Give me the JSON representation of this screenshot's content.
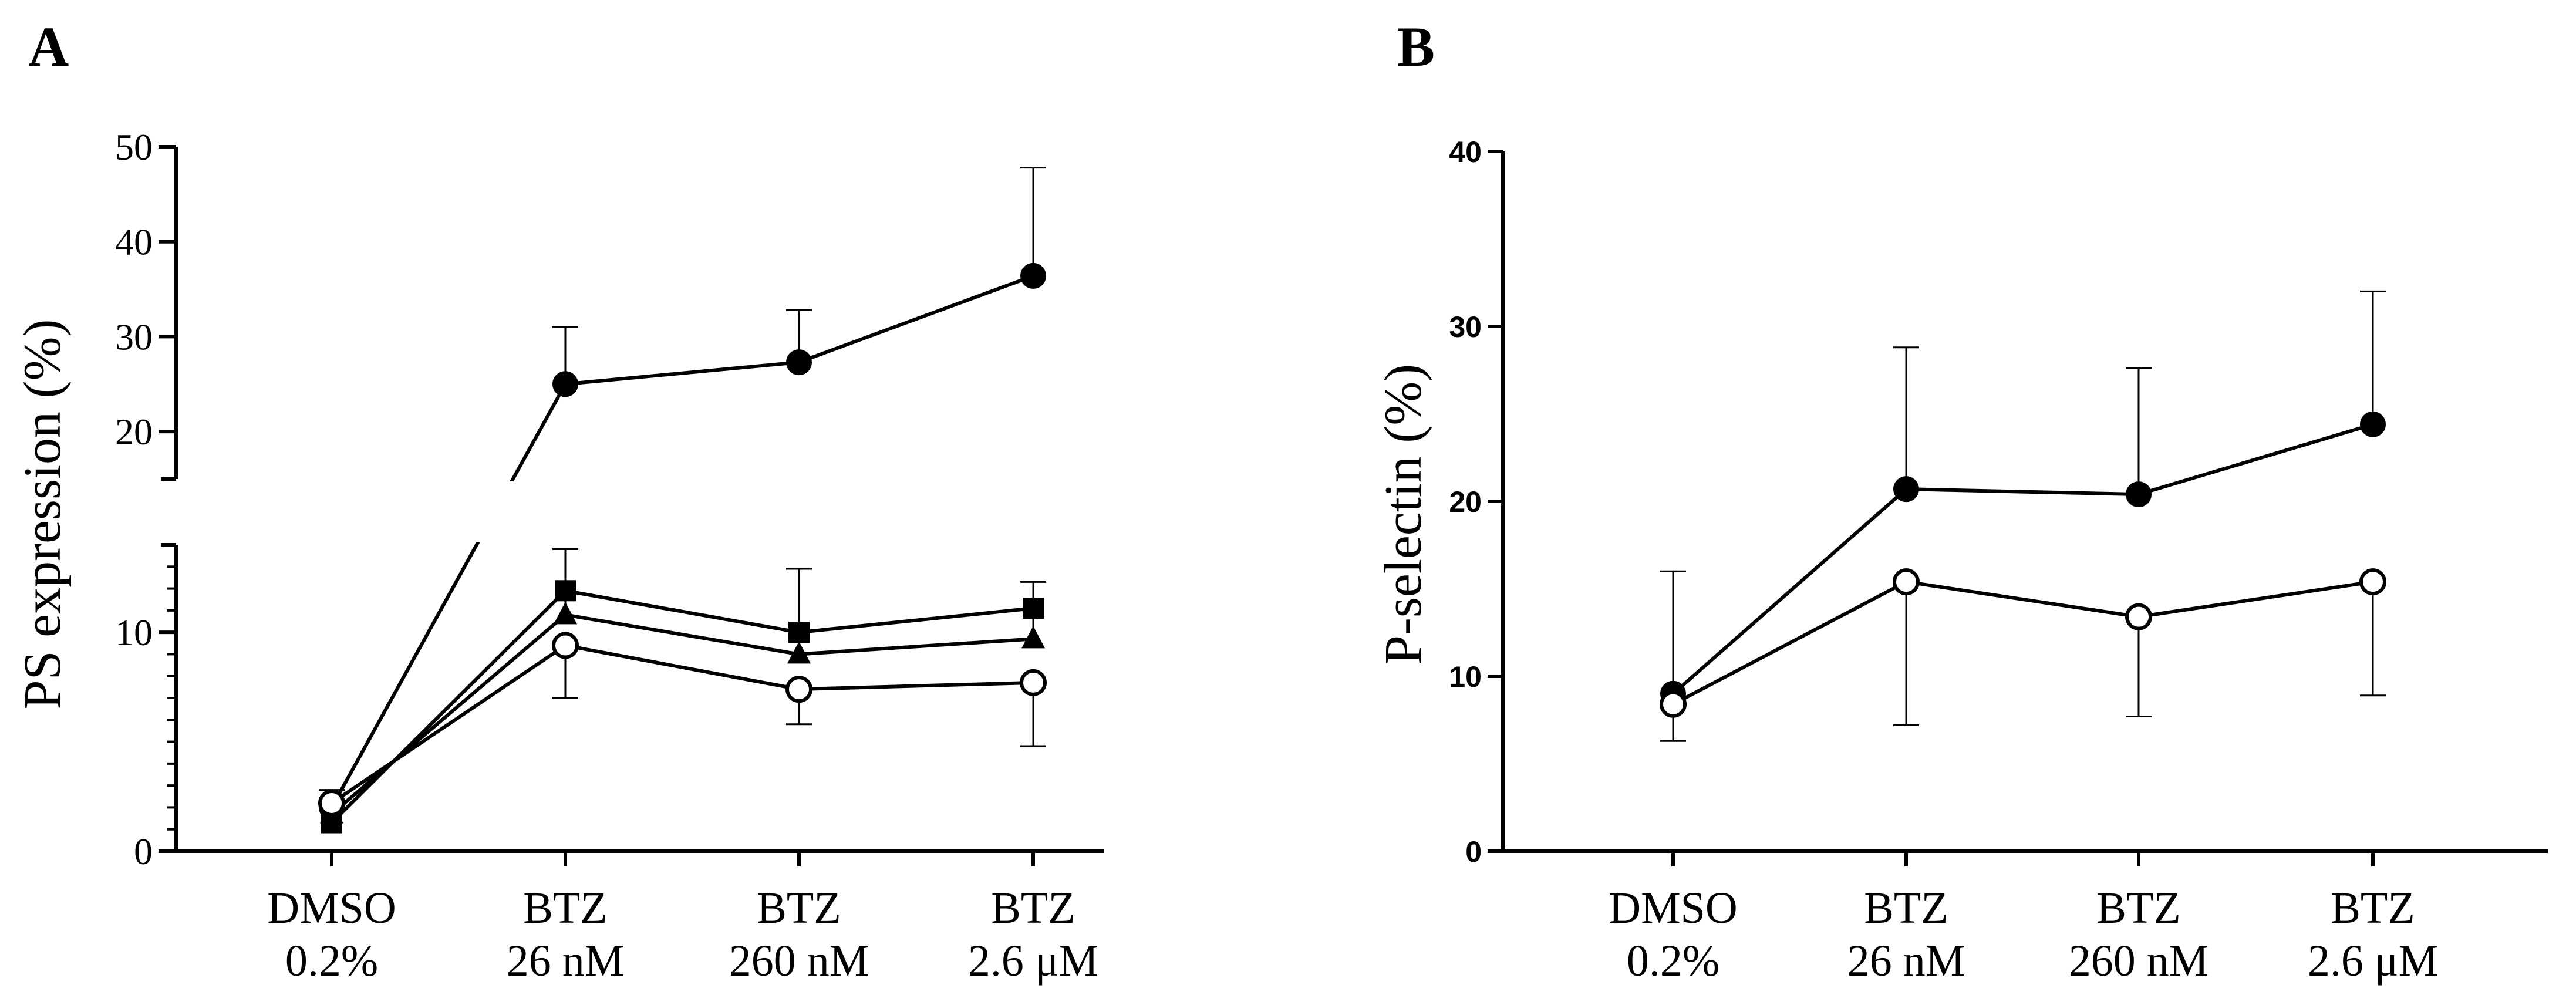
{
  "chart_data": [
    {
      "panel": "A",
      "type": "line",
      "ylabel": "PS expression (%)",
      "categories": [
        [
          "DMSO",
          "0.2%"
        ],
        [
          "BTZ",
          "26 nM"
        ],
        [
          "BTZ",
          "260 nM"
        ],
        [
          "BTZ",
          "2.6 μM"
        ]
      ],
      "y_axis": {
        "broken": true,
        "lower_range": [
          0,
          14
        ],
        "upper_range": [
          15,
          50
        ],
        "lower_ticks": [
          0,
          10
        ],
        "upper_ticks": [
          20,
          30,
          40,
          50
        ],
        "tick_labels": [
          "0",
          "10",
          "20",
          "30",
          "40",
          "50"
        ]
      },
      "series": [
        {
          "name": "filled circle",
          "marker": "circle-filled",
          "values": [
            2.0,
            25.0,
            27.3,
            36.4
          ],
          "err_upper": [
            2.8,
            31.0,
            32.8,
            47.8
          ]
        },
        {
          "name": "filled square",
          "marker": "square-filled",
          "values": [
            1.3,
            11.9,
            10.0,
            11.1
          ],
          "err_upper": [
            null,
            null,
            null,
            null
          ]
        },
        {
          "name": "filled triangle",
          "marker": "triangle-filled",
          "values": [
            1.7,
            10.8,
            9.0,
            9.7
          ],
          "err_upper": [
            null,
            13.8,
            12.9,
            12.3
          ]
        },
        {
          "name": "open circle",
          "marker": "circle-open",
          "values": [
            2.2,
            9.4,
            7.4,
            7.7
          ],
          "err_lower": [
            null,
            7.0,
            5.8,
            4.8
          ]
        }
      ]
    },
    {
      "panel": "B",
      "type": "line",
      "ylabel": "P-selectin (%)",
      "categories": [
        [
          "DMSO",
          "0.2%"
        ],
        [
          "BTZ",
          "26 nM"
        ],
        [
          "BTZ",
          "260 nM"
        ],
        [
          "BTZ",
          "2.6 μM"
        ]
      ],
      "ylim": [
        0,
        40
      ],
      "yticks": [
        0,
        10,
        20,
        30,
        40
      ],
      "tick_labels": [
        "0",
        "10",
        "20",
        "30",
        "40"
      ],
      "series": [
        {
          "name": "filled circle",
          "marker": "circle-filled",
          "values": [
            9.0,
            20.7,
            20.4,
            24.4
          ],
          "err_upper": [
            16.0,
            28.8,
            27.6,
            32.0
          ]
        },
        {
          "name": "open circle",
          "marker": "circle-open",
          "values": [
            8.4,
            15.4,
            13.4,
            15.4
          ],
          "err_lower": [
            6.3,
            7.2,
            7.7,
            8.9
          ]
        }
      ]
    }
  ]
}
